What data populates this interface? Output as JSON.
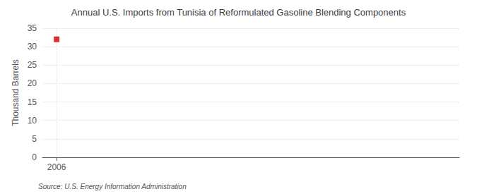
{
  "chart_data": {
    "type": "scatter",
    "title": "Annual U.S. Imports from Tunisia of Reformulated Gasoline Blending Components",
    "ylabel": "Thousand Barrels",
    "annotation": "Source: U.S. Energy Information Administration",
    "x": [
      2006
    ],
    "values": [
      32
    ],
    "color": "#cc0000",
    "marker": "square",
    "xlim": [
      2005.4,
      2023
    ],
    "xticks": [
      2006
    ],
    "ylim": [
      0,
      35
    ],
    "yticks": [
      0,
      5,
      10,
      15,
      20,
      25,
      30,
      35
    ],
    "grid": true
  }
}
